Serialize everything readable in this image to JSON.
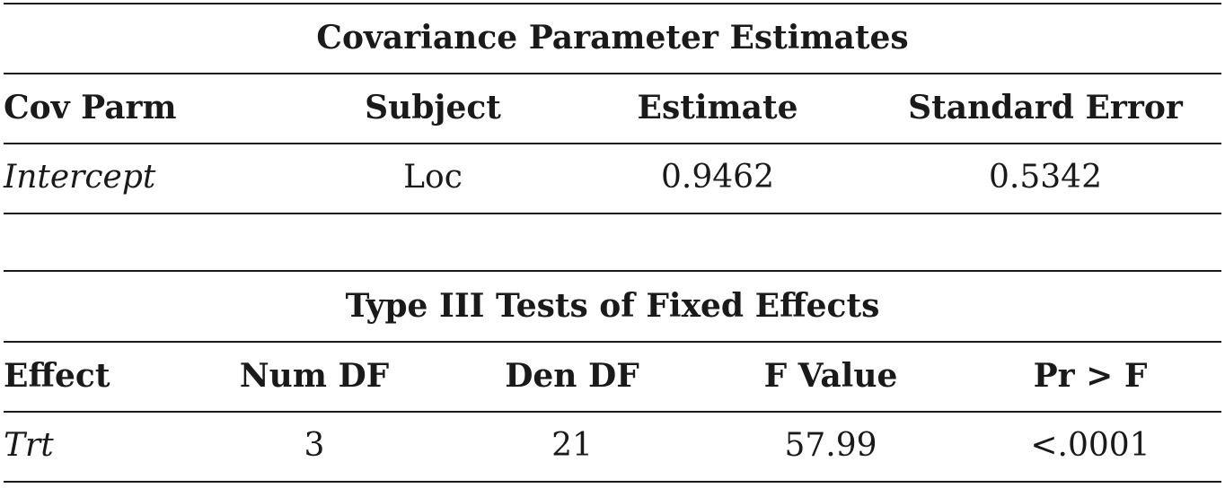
{
  "covariance_table": {
    "title": "Covariance Parameter Estimates",
    "columns": [
      "Cov Parm",
      "Subject",
      "Estimate",
      "Standard Error"
    ],
    "rows": [
      [
        "Intercept",
        "Loc",
        "0.9462",
        "0.5342"
      ]
    ]
  },
  "fixed_effects_table": {
    "title": "Type III Tests of Fixed Effects",
    "columns": [
      "Effect",
      "Num DF",
      "Den DF",
      "F Value",
      "Pr > F"
    ],
    "rows": [
      [
        "Trt",
        "3",
        "21",
        "57.99",
        "<.0001"
      ]
    ]
  }
}
